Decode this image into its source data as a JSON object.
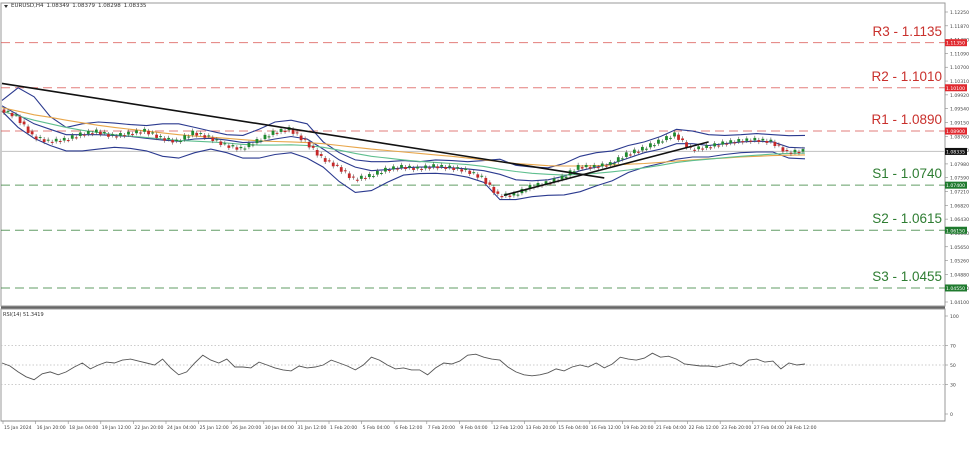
{
  "header": {
    "symbol": "EURUSD,H4",
    "open": "1.08349",
    "high": "1.08379",
    "low": "1.08298",
    "close": "1.08335"
  },
  "rsi": {
    "label": "RSI(14) 51.3419",
    "levels": [
      70,
      50,
      30
    ],
    "axis_ticks": [
      "100",
      "70",
      "50",
      "30",
      "0"
    ]
  },
  "levels": [
    {
      "name": "R3",
      "label": "R3 - 1.1135",
      "price": 1.1135,
      "tag": "1.11350",
      "color": "#d9534f"
    },
    {
      "name": "R2",
      "label": "R2 - 1.1010",
      "price": 1.101,
      "tag": "1.10100",
      "color": "#d9534f"
    },
    {
      "name": "R1",
      "label": "R1 - 1.0890",
      "price": 1.089,
      "tag": "1.08900",
      "color": "#d9534f"
    },
    {
      "name": "S1",
      "label": "S1 - 1.0740",
      "price": 1.074,
      "tag": "1.07400",
      "color": "#2e7d32"
    },
    {
      "name": "S2",
      "label": "S2 - 1.0615",
      "price": 1.0615,
      "tag": "1.06150",
      "color": "#2e7d32"
    },
    {
      "name": "S3",
      "label": "S3 - 1.0455",
      "price": 1.0455,
      "tag": "1.04550",
      "color": "#2e7d32"
    }
  ],
  "current_price": {
    "price": 1.08335,
    "tag": "1.08335"
  },
  "chart_data": {
    "type": "line",
    "title": "EURUSD,H4",
    "subtitle": "1.08349 1.08379 1.08298 1.08335",
    "xlabel": "",
    "ylabel": "",
    "x_tick_labels": [
      "15 Jan 2024",
      "16 Jan 20:00",
      "18 Jan 04:00",
      "19 Jan 12:00",
      "22 Jan 20:00",
      "24 Jan 04:00",
      "25 Jan 12:00",
      "26 Jan 20:00",
      "30 Jan 04:00",
      "31 Jan 12:00",
      "1 Feb 20:00",
      "5 Feb 04:00",
      "6 Feb 12:00",
      "7 Feb 20:00",
      "9 Feb 04:00",
      "12 Feb 12:00",
      "13 Feb 20:00",
      "15 Feb 04:00",
      "16 Feb 12:00",
      "19 Feb 20:00",
      "21 Feb 04:00",
      "22 Feb 12:00",
      "23 Feb 20:00",
      "27 Feb 04:00",
      "28 Feb 12:00"
    ],
    "y_tick_labels": [
      "1.12250",
      "1.11870",
      "1.11480",
      "1.11090",
      "1.10700",
      "1.10310",
      "1.09920",
      "1.09540",
      "1.09150",
      "1.08760",
      "1.08370",
      "1.07980",
      "1.07590",
      "1.07210",
      "1.06820",
      "1.06430",
      "1.06040",
      "1.05650",
      "1.05260",
      "1.04880",
      "1.04490",
      "1.04100"
    ],
    "ylim": [
      1.0405,
      1.1245
    ],
    "grid": false,
    "price_series": {
      "name": "EURUSD close (approx.)",
      "x_index": [
        0,
        4,
        8,
        12,
        16,
        20,
        24,
        28,
        32,
        36,
        40,
        44,
        48,
        52,
        56,
        60,
        64,
        68,
        72,
        76,
        80,
        84,
        88,
        92,
        96,
        100,
        104,
        108,
        112,
        116,
        120,
        124,
        128,
        132,
        136,
        140,
        144,
        148,
        152,
        156,
        160,
        164,
        168,
        172,
        176,
        180,
        184,
        188,
        192,
        196,
        200
      ],
      "values": [
        1.095,
        1.093,
        1.0875,
        1.086,
        1.0865,
        1.088,
        1.0888,
        1.0875,
        1.0882,
        1.089,
        1.087,
        1.086,
        1.0885,
        1.0872,
        1.085,
        1.084,
        1.0862,
        1.0885,
        1.0895,
        1.086,
        1.0815,
        1.079,
        1.0755,
        1.0765,
        1.0782,
        1.079,
        1.0785,
        1.0792,
        1.0788,
        1.078,
        1.076,
        1.071,
        1.0712,
        1.0735,
        1.0745,
        1.076,
        1.079,
        1.079,
        1.0798,
        1.0825,
        1.084,
        1.086,
        1.088,
        1.0838,
        1.0845,
        1.0855,
        1.0862,
        1.0865,
        1.086,
        1.083,
        1.0834
      ]
    },
    "series": [
      {
        "name": "Bollinger upper",
        "color": "#2b3a8f",
        "values": [
          1.0975,
          1.101,
          1.0985,
          1.093,
          1.09,
          1.091,
          1.0915,
          1.0912,
          1.0908,
          1.0905,
          1.091,
          1.091,
          1.09,
          1.089,
          1.088,
          1.0878,
          1.0895,
          1.0915,
          1.092,
          1.091,
          1.086,
          1.083,
          1.081,
          1.0805,
          1.0805,
          1.0808,
          1.0805,
          1.081,
          1.0808,
          1.0805,
          1.0808,
          1.0812,
          1.0795,
          1.079,
          1.0788,
          1.08,
          1.082,
          1.083,
          1.0835,
          1.085,
          1.086,
          1.0875,
          1.0895,
          1.089,
          1.088,
          1.0878,
          1.088,
          1.0883,
          1.088,
          1.0877,
          1.0878
        ]
      },
      {
        "name": "Bollinger middle",
        "color": "#2b3a8f",
        "values": [
          1.096,
          1.0935,
          1.091,
          1.0895,
          1.088,
          1.088,
          1.088,
          1.0878,
          1.0875,
          1.087,
          1.0865,
          1.0862,
          1.0868,
          1.087,
          1.0865,
          1.0858,
          1.086,
          1.0868,
          1.0875,
          1.0868,
          1.084,
          1.081,
          1.079,
          1.078,
          1.0783,
          1.0788,
          1.079,
          1.079,
          1.0788,
          1.0785,
          1.078,
          1.077,
          1.0755,
          1.0752,
          1.0755,
          1.0765,
          1.078,
          1.079,
          1.08,
          1.0815,
          1.083,
          1.084,
          1.0855,
          1.0855,
          1.085,
          1.0855,
          1.086,
          1.0862,
          1.086,
          1.0845,
          1.0843
        ]
      },
      {
        "name": "Bollinger lower",
        "color": "#2b3a8f",
        "values": [
          1.0945,
          1.09,
          1.087,
          1.085,
          1.0835,
          1.0835,
          1.084,
          1.0845,
          1.0842,
          1.0835,
          1.082,
          1.0815,
          1.083,
          1.084,
          1.083,
          1.0815,
          1.0815,
          1.0825,
          1.083,
          1.0815,
          1.079,
          1.075,
          1.072,
          1.0725,
          1.0748,
          1.0768,
          1.0772,
          1.0773,
          1.077,
          1.0762,
          1.0748,
          1.07,
          1.07,
          1.0708,
          1.0712,
          1.0713,
          1.0722,
          1.0738,
          1.0752,
          1.0775,
          1.079,
          1.08,
          1.0812,
          1.0818,
          1.0818,
          1.0825,
          1.083,
          1.0832,
          1.0832,
          1.0815,
          1.0813
        ]
      },
      {
        "name": "MA long (orange)",
        "color": "#e8a64a",
        "values": [
          1.0955,
          1.0945,
          1.0935,
          1.0928,
          1.092,
          1.0913,
          1.0906,
          1.09,
          1.0895,
          1.089,
          1.0885,
          1.088,
          1.0876,
          1.0873,
          1.087,
          1.0866,
          1.0863,
          1.0861,
          1.086,
          1.0858,
          1.0855,
          1.085,
          1.0845,
          1.084,
          1.0836,
          1.0832,
          1.0828,
          1.0824,
          1.082,
          1.0815,
          1.081,
          1.0805,
          1.08,
          1.0797,
          1.0794,
          1.0793,
          1.0793,
          1.0794,
          1.0796,
          1.0798,
          1.08,
          1.0803,
          1.0807,
          1.081,
          1.0813,
          1.0815,
          1.0818,
          1.082,
          1.0822,
          1.0823,
          1.0824
        ]
      },
      {
        "name": "MA medium (green)",
        "color": "#5fbf8f",
        "values": [
          1.0945,
          1.0932,
          1.092,
          1.091,
          1.09,
          1.0892,
          1.0886,
          1.088,
          1.0876,
          1.0872,
          1.0868,
          1.0864,
          1.0862,
          1.086,
          1.0857,
          1.0853,
          1.0851,
          1.0851,
          1.0852,
          1.085,
          1.0845,
          1.0837,
          1.0828,
          1.082,
          1.0815,
          1.081,
          1.0806,
          1.0803,
          1.08,
          1.0797,
          1.0792,
          1.0784,
          1.0778,
          1.0773,
          1.077,
          1.0768,
          1.077,
          1.0773,
          1.0777,
          1.0782,
          1.0788,
          1.0795,
          1.0803,
          1.0808,
          1.0812,
          1.0816,
          1.082,
          1.0823,
          1.0826,
          1.0828,
          1.0829
        ]
      }
    ],
    "trendlines": [
      {
        "name": "downtrend",
        "color": "#111111",
        "from": {
          "x_index": 0,
          "price": 1.1022
        },
        "to": {
          "x_index": 150,
          "price": 1.076
        }
      },
      {
        "name": "uptrend",
        "color": "#111111",
        "from": {
          "x_index": 125,
          "price": 1.0712
        },
        "to": {
          "x_index": 176,
          "price": 1.086
        }
      }
    ],
    "rsi_series": {
      "name": "RSI(14)",
      "values": [
        52,
        49,
        43,
        38,
        35,
        41,
        43,
        40,
        43,
        48,
        52,
        46,
        50,
        53,
        52,
        55,
        56,
        54,
        52,
        50,
        56,
        47,
        40,
        43,
        52,
        60,
        55,
        52,
        56,
        48,
        48,
        47,
        53,
        50,
        47,
        45,
        44,
        49,
        47,
        48,
        50,
        55,
        52,
        49,
        45,
        50,
        58,
        55,
        50,
        46,
        47,
        45,
        45,
        40,
        47,
        52,
        51,
        54,
        60,
        61,
        58,
        56,
        55,
        48,
        43,
        40,
        39,
        40,
        42,
        46,
        44,
        48,
        50,
        48,
        52,
        47,
        51,
        58,
        56,
        55,
        57,
        62,
        58,
        59,
        56,
        51,
        50,
        49,
        49,
        48,
        50,
        52,
        49,
        55,
        56,
        53,
        54,
        46,
        52,
        50,
        51
      ]
    }
  }
}
